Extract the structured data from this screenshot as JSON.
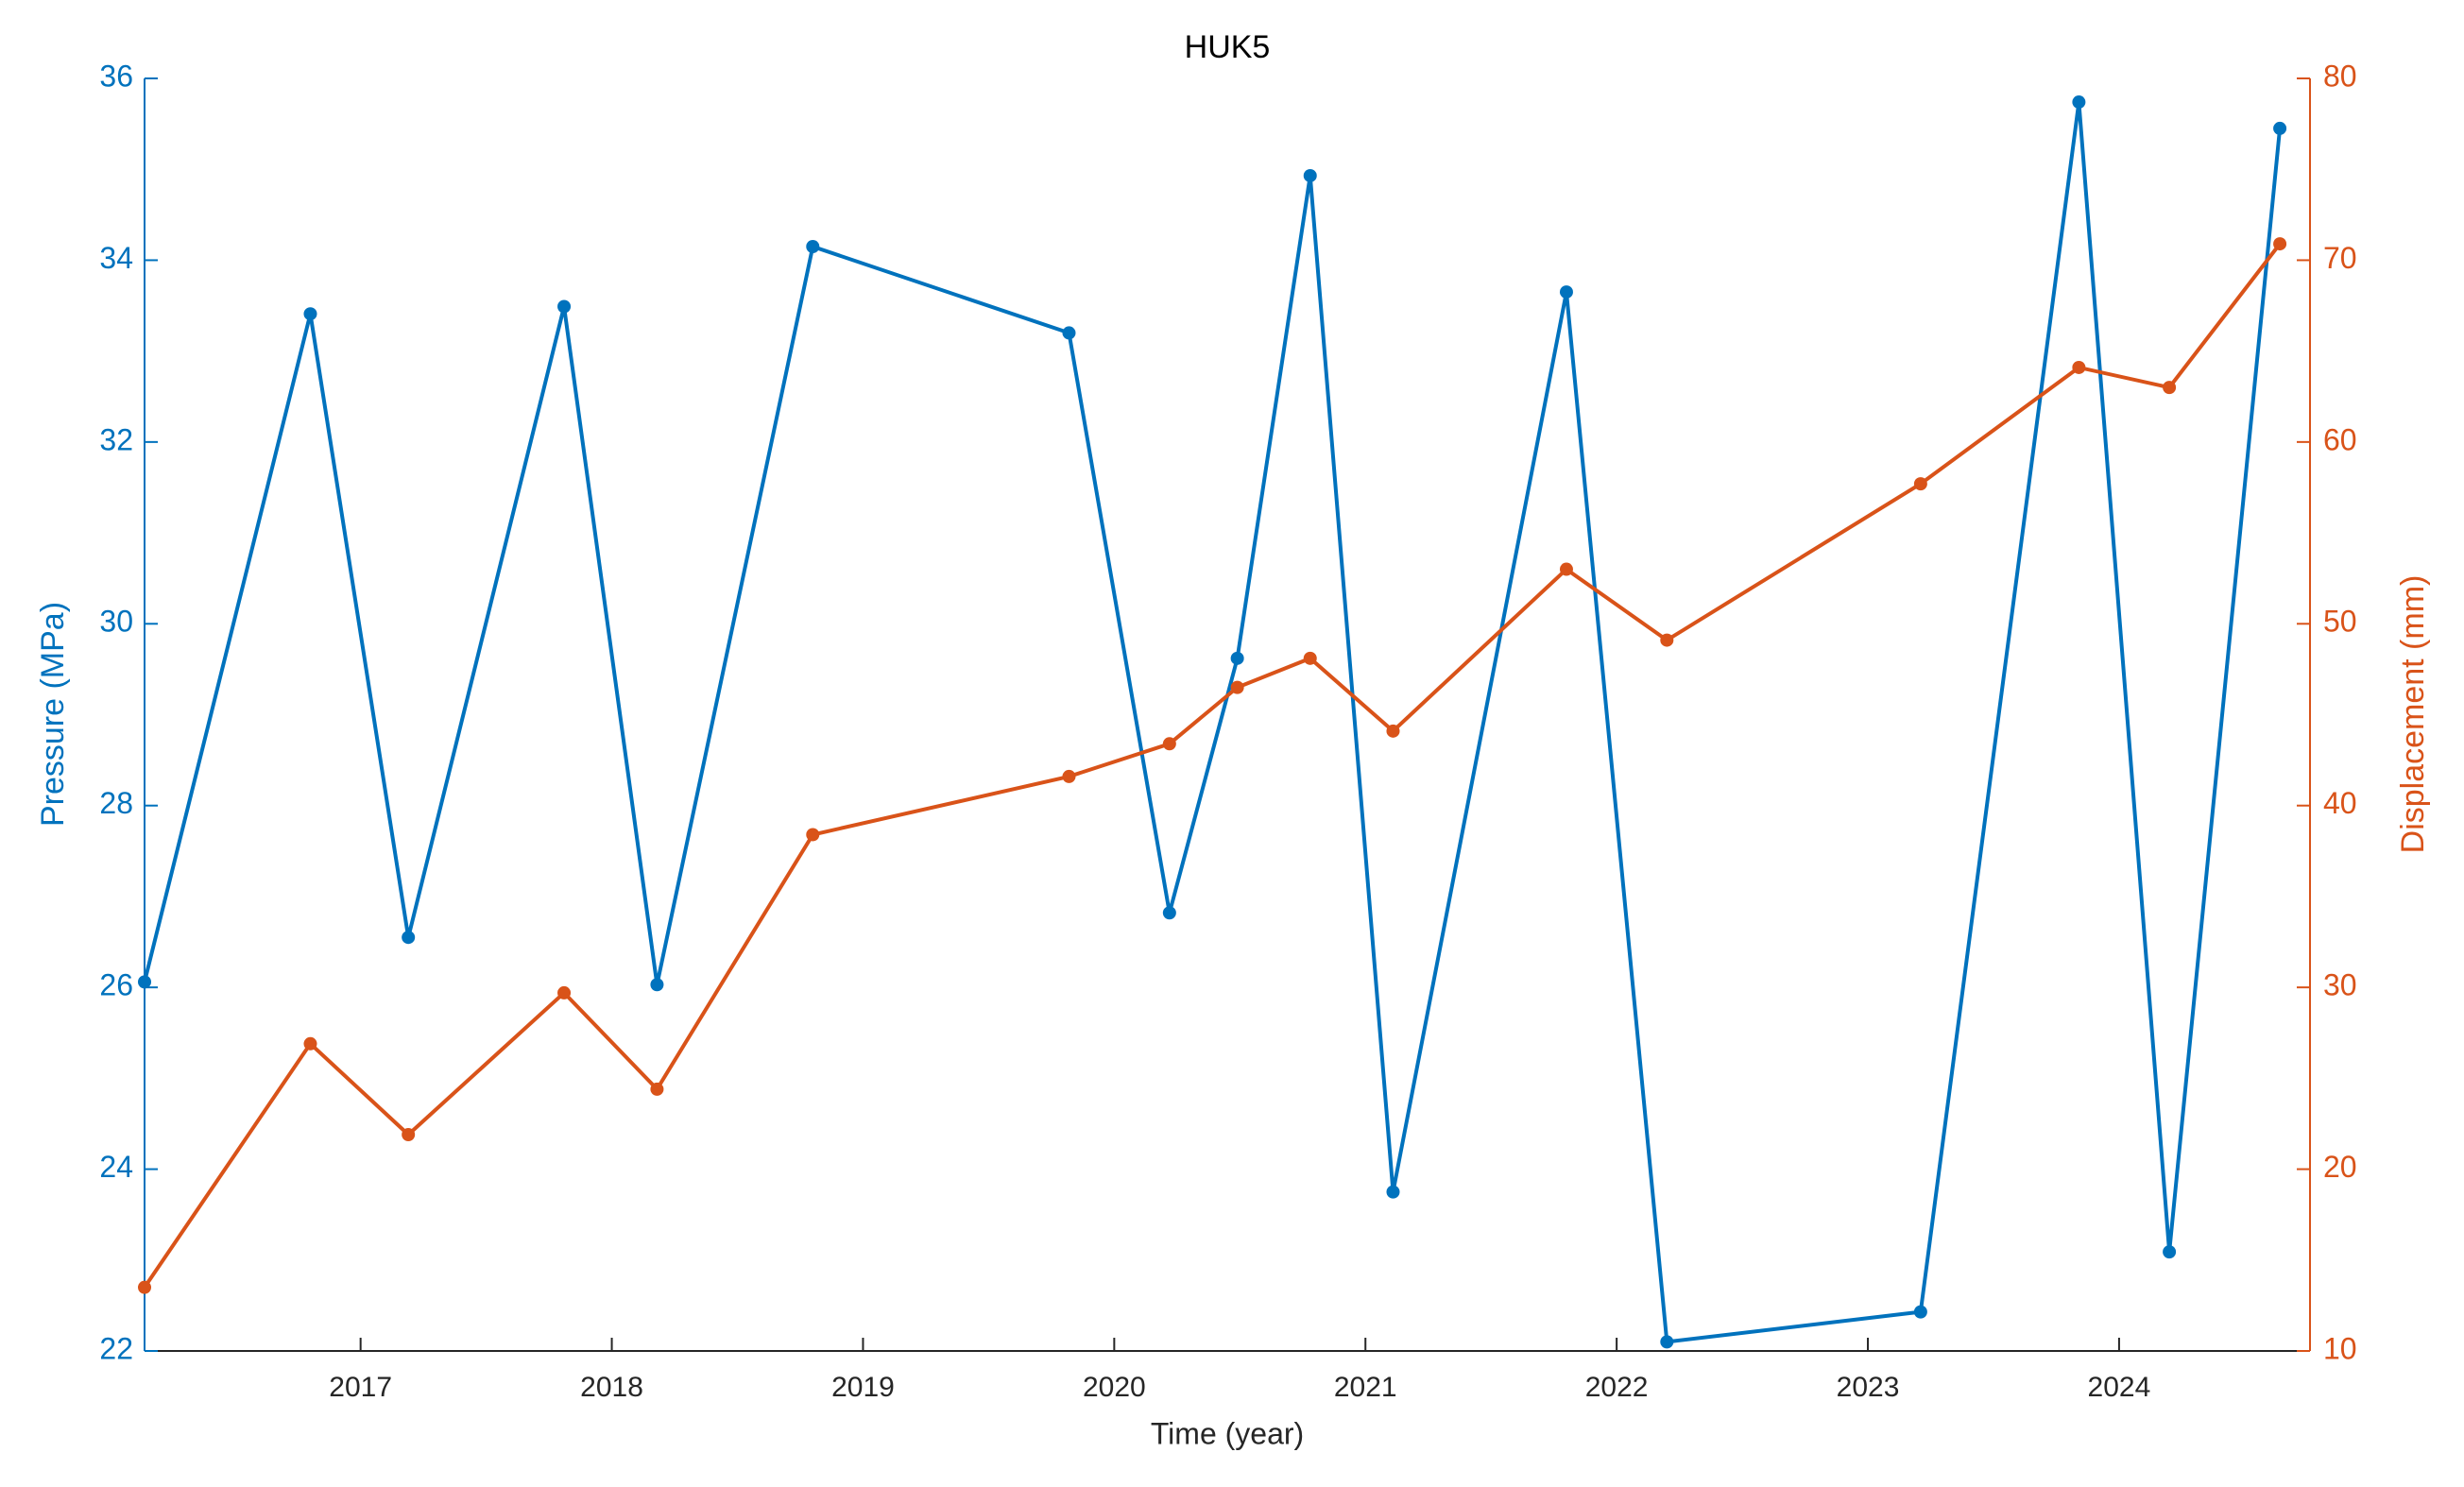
{
  "chart_data": {
    "type": "line",
    "title": "HUK5",
    "xlabel": "Time (year)",
    "ylabel": "Pressure (MPa)",
    "y2label": "Displacement (mm)",
    "x": [
      2016.14,
      2016.8,
      2017.19,
      2017.81,
      2018.18,
      2018.8,
      2019.82,
      2020.22,
      2020.49,
      2020.78,
      2021.11,
      2021.8,
      2022.2,
      2023.21,
      2023.84,
      2024.2,
      2024.64
    ],
    "series": [
      {
        "name": "Pressure (MPa)",
        "color": "#0072bd",
        "axis": "y",
        "values": [
          26.06,
          33.41,
          26.55,
          33.49,
          26.03,
          34.15,
          33.2,
          26.82,
          29.62,
          34.93,
          23.75,
          33.65,
          22.1,
          22.43,
          35.74,
          23.09,
          35.45
        ]
      },
      {
        "name": "Displacement (mm)",
        "color": "#d95319",
        "axis": "y2",
        "values": [
          13.5,
          26.9,
          21.9,
          29.7,
          24.4,
          38.4,
          41.6,
          43.4,
          46.5,
          48.1,
          44.1,
          53.0,
          49.1,
          57.7,
          64.1,
          63.0,
          70.9
        ]
      }
    ],
    "xlim": [
      2016.14,
      2024.76
    ],
    "xticks": [
      2017,
      2018,
      2019,
      2020,
      2021,
      2022,
      2023,
      2024
    ],
    "ylim": [
      22,
      36
    ],
    "yticks": [
      22,
      24,
      26,
      28,
      30,
      32,
      34,
      36
    ],
    "y2lim": [
      10,
      80
    ],
    "y2ticks": [
      10,
      20,
      30,
      40,
      50,
      60,
      70,
      80
    ]
  }
}
